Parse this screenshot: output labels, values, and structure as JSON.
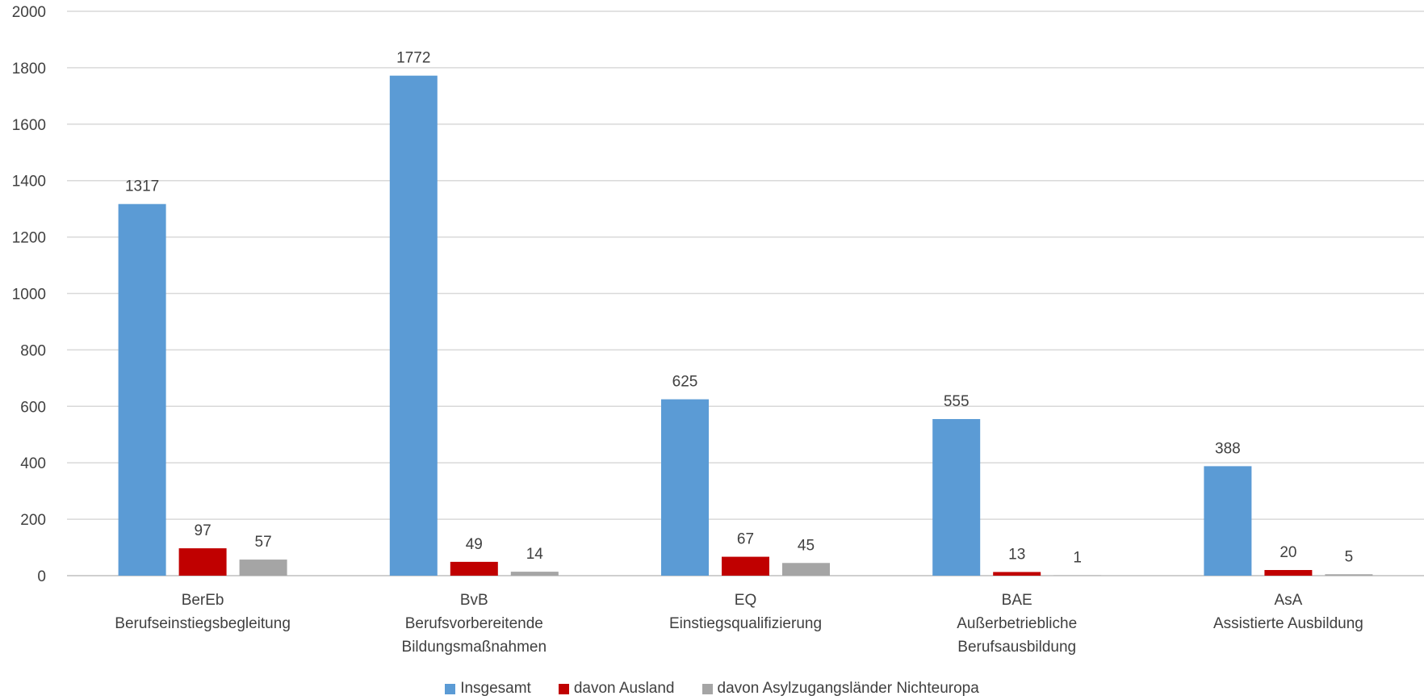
{
  "chart_data": {
    "type": "bar",
    "categories": [
      [
        "BerEb",
        "Berufseinstiegsbegleitung"
      ],
      [
        "BvB",
        "Berufsvorbereitende",
        "Bildungsmaßnahmen"
      ],
      [
        "EQ",
        "Einstiegsqualifizierung"
      ],
      [
        "BAE",
        "Außerbetriebliche",
        "Berufsausbildung"
      ],
      [
        "AsA",
        "Assistierte Ausbildung"
      ]
    ],
    "series": [
      {
        "name": "Insgesamt",
        "color": "#5B9BD5",
        "values": [
          1317,
          1772,
          625,
          555,
          388
        ]
      },
      {
        "name": "davon Ausland",
        "color": "#C00000",
        "values": [
          97,
          49,
          67,
          13,
          20
        ]
      },
      {
        "name": "davon Asylzugangsländer Nichteuropa",
        "color": "#A5A5A5",
        "values": [
          57,
          14,
          45,
          1,
          5
        ]
      }
    ],
    "ylim": [
      0,
      2000
    ],
    "yticks": [
      0,
      200,
      400,
      600,
      800,
      1000,
      1200,
      1400,
      1600,
      1800,
      2000
    ],
    "grid": true,
    "legend_position": "bottom",
    "data_labels": true
  }
}
